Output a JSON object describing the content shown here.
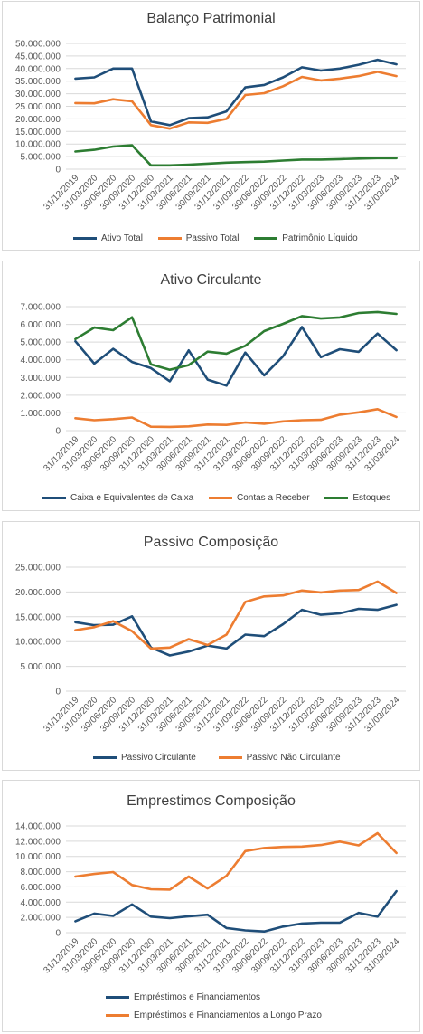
{
  "colors": {
    "blue": "#1f4e79",
    "orange": "#ed7d31",
    "green": "#2d7d32",
    "grid": "#d9d9d9",
    "axis": "#595959"
  },
  "chart_data": [
    {
      "type": "line",
      "title": "Balanço Patrimonial",
      "categories": [
        "31/12/2019",
        "31/03/2020",
        "30/06/2020",
        "30/09/2020",
        "31/12/2020",
        "31/03/2021",
        "30/06/2021",
        "30/09/2021",
        "31/12/2021",
        "31/03/2022",
        "30/06/2022",
        "30/09/2022",
        "31/12/2022",
        "31/03/2023",
        "30/06/2023",
        "30/09/2023",
        "31/12/2023",
        "31/03/2024"
      ],
      "ylim": [
        0,
        50000000
      ],
      "yticks": [
        "0",
        "5.000.000",
        "10.000.000",
        "15.000.000",
        "20.000.000",
        "25.000.000",
        "30.000.000",
        "35.000.000",
        "40.000.000",
        "45.000.000",
        "50.000.000"
      ],
      "grid": true,
      "legend_position": "bottom",
      "series": [
        {
          "name": "Ativo Total",
          "color": "#1f4e79",
          "values": [
            36000000,
            36500000,
            40000000,
            40000000,
            19000000,
            17500000,
            20300000,
            20600000,
            23000000,
            32500000,
            33500000,
            36500000,
            40500000,
            39200000,
            40000000,
            41500000,
            43500000,
            41700000
          ]
        },
        {
          "name": "Passivo Total",
          "color": "#ed7d31",
          "values": [
            26300000,
            26200000,
            27800000,
            27000000,
            17500000,
            16100000,
            18600000,
            18400000,
            20000000,
            29500000,
            30200000,
            33000000,
            36700000,
            35300000,
            36000000,
            37000000,
            38700000,
            37000000
          ]
        },
        {
          "name": "Patrimônio Líquido",
          "color": "#2d7d32",
          "values": [
            7000000,
            7700000,
            9000000,
            9500000,
            1500000,
            1500000,
            1800000,
            2200000,
            2600000,
            2800000,
            3000000,
            3400000,
            3800000,
            3800000,
            4000000,
            4200000,
            4400000,
            4400000
          ]
        }
      ]
    },
    {
      "type": "line",
      "title": "Ativo Circulante",
      "categories": [
        "31/12/2019",
        "31/03/2020",
        "30/06/2020",
        "30/09/2020",
        "31/12/2020",
        "31/03/2021",
        "30/06/2021",
        "30/09/2021",
        "31/12/2021",
        "31/03/2022",
        "30/06/2022",
        "30/09/2022",
        "31/12/2022",
        "31/03/2023",
        "30/06/2023",
        "30/09/2023",
        "31/12/2023",
        "31/03/2024"
      ],
      "ylim": [
        0,
        7000000
      ],
      "yticks": [
        "0",
        "1.000.000",
        "2.000.000",
        "3.000.000",
        "4.000.000",
        "5.000.000",
        "6.000.000",
        "7.000.000"
      ],
      "grid": true,
      "legend_position": "bottom",
      "series": [
        {
          "name": "Caixa e Equivalentes de Caixa",
          "color": "#1f4e79",
          "values": [
            5050000,
            3780000,
            4620000,
            3880000,
            3530000,
            2790000,
            4530000,
            2880000,
            2540000,
            4410000,
            3120000,
            4200000,
            5850000,
            4150000,
            4600000,
            4450000,
            5480000,
            4540000
          ]
        },
        {
          "name": "Contas a Receber",
          "color": "#ed7d31",
          "values": [
            700000,
            590000,
            650000,
            740000,
            220000,
            210000,
            240000,
            340000,
            320000,
            460000,
            390000,
            520000,
            590000,
            610000,
            900000,
            1030000,
            1210000,
            770000
          ]
        },
        {
          "name": "Estoques",
          "color": "#2d7d32",
          "values": [
            5170000,
            5820000,
            5670000,
            6400000,
            3740000,
            3440000,
            3700000,
            4460000,
            4350000,
            4790000,
            5620000,
            6030000,
            6470000,
            6330000,
            6390000,
            6640000,
            6700000,
            6590000
          ]
        }
      ]
    },
    {
      "type": "line",
      "title": "Passivo Composição",
      "categories": [
        "31/12/2019",
        "31/03/2020",
        "30/06/2020",
        "30/09/2020",
        "31/12/2020",
        "31/03/2021",
        "30/06/2021",
        "30/09/2021",
        "31/12/2021",
        "31/03/2022",
        "30/06/2022",
        "30/09/2022",
        "31/12/2022",
        "31/03/2023",
        "30/06/2023",
        "30/09/2023",
        "31/12/2023",
        "31/03/2024"
      ],
      "ylim": [
        0,
        25000000
      ],
      "yticks": [
        "0",
        "5.000.000",
        "10.000.000",
        "15.000.000",
        "20.000.000",
        "25.000.000"
      ],
      "grid": true,
      "legend_position": "bottom",
      "series": [
        {
          "name": "Passivo Circulante",
          "color": "#1f4e79",
          "values": [
            13900000,
            13300000,
            13400000,
            15100000,
            8800000,
            7200000,
            8000000,
            9200000,
            8600000,
            11400000,
            11100000,
            13500000,
            16400000,
            15400000,
            15700000,
            16600000,
            16400000,
            17400000
          ]
        },
        {
          "name": "Passivo Não Circulante",
          "color": "#ed7d31",
          "values": [
            12300000,
            12900000,
            14100000,
            12100000,
            8600000,
            8800000,
            10500000,
            9300000,
            11400000,
            18000000,
            19100000,
            19300000,
            20300000,
            19900000,
            20300000,
            20400000,
            22100000,
            19800000
          ]
        }
      ]
    },
    {
      "type": "line",
      "title": "Emprestimos Composição",
      "categories": [
        "31/12/2019",
        "31/03/2020",
        "30/06/2020",
        "30/09/2020",
        "31/12/2020",
        "31/03/2021",
        "30/06/2021",
        "30/09/2021",
        "31/12/2021",
        "31/03/2022",
        "30/06/2022",
        "30/09/2022",
        "31/12/2022",
        "31/03/2023",
        "30/06/2023",
        "30/09/2023",
        "31/12/2023",
        "31/03/2024"
      ],
      "ylim": [
        0,
        14000000
      ],
      "yticks": [
        "0",
        "2.000.000",
        "4.000.000",
        "6.000.000",
        "8.000.000",
        "10.000.000",
        "12.000.000",
        "14.000.000"
      ],
      "grid": true,
      "legend_position": "bottom",
      "series": [
        {
          "name": "Empréstimos e Financiamentos",
          "color": "#1f4e79",
          "values": [
            1500000,
            2500000,
            2200000,
            3700000,
            2100000,
            1900000,
            2150000,
            2350000,
            600000,
            300000,
            150000,
            800000,
            1200000,
            1300000,
            1300000,
            2600000,
            2100000,
            5450000
          ]
        },
        {
          "name": "Empréstimos e Financiamentos a Longo Prazo",
          "color": "#ed7d31",
          "values": [
            7350000,
            7700000,
            7950000,
            6250000,
            5700000,
            5650000,
            7350000,
            5800000,
            7450000,
            10700000,
            11100000,
            11250000,
            11300000,
            11500000,
            11950000,
            11450000,
            13050000,
            10450000
          ]
        }
      ]
    }
  ]
}
